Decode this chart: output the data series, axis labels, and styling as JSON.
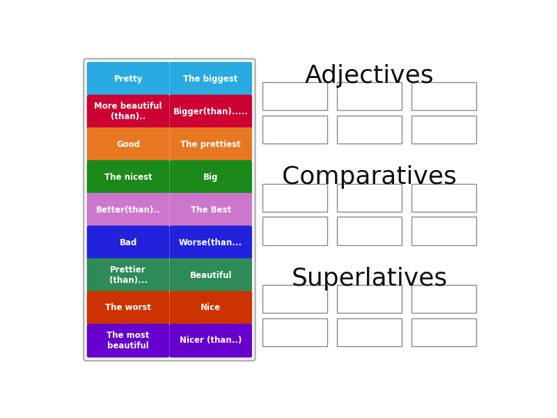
{
  "bg_color": "#ffffff",
  "cards": [
    {
      "text": "Pretty",
      "color": "#29ABE2",
      "row": 0,
      "col": 0
    },
    {
      "text": "The biggest",
      "color": "#29ABE2",
      "row": 0,
      "col": 1
    },
    {
      "text": "More beautiful\n(than)..",
      "color": "#CC0033",
      "row": 1,
      "col": 0
    },
    {
      "text": "Bigger(than).....",
      "color": "#CC0033",
      "row": 1,
      "col": 1
    },
    {
      "text": "Good",
      "color": "#E87722",
      "row": 2,
      "col": 0
    },
    {
      "text": "The prettiest",
      "color": "#E87722",
      "row": 2,
      "col": 1
    },
    {
      "text": "The nicest",
      "color": "#1B8A1B",
      "row": 3,
      "col": 0
    },
    {
      "text": "Big",
      "color": "#1B8A1B",
      "row": 3,
      "col": 1
    },
    {
      "text": "Better(than)..",
      "color": "#CC77CC",
      "row": 4,
      "col": 0
    },
    {
      "text": "The Best",
      "color": "#CC77CC",
      "row": 4,
      "col": 1
    },
    {
      "text": "Bad",
      "color": "#2222DD",
      "row": 5,
      "col": 0
    },
    {
      "text": "Worse(than...",
      "color": "#2222DD",
      "row": 5,
      "col": 1
    },
    {
      "text": "Prettier\n(than)...",
      "color": "#2E8B57",
      "row": 6,
      "col": 0
    },
    {
      "text": "Beautiful",
      "color": "#2E8B57",
      "row": 6,
      "col": 1
    },
    {
      "text": "The worst",
      "color": "#CC3300",
      "row": 7,
      "col": 0
    },
    {
      "text": "Nice",
      "color": "#CC3300",
      "row": 7,
      "col": 1
    },
    {
      "text": "The most\nbeautiful",
      "color": "#6600CC",
      "row": 8,
      "col": 0
    },
    {
      "text": "Nicer (than..)",
      "color": "#6600CC",
      "row": 8,
      "col": 1
    }
  ],
  "section_titles": [
    "Adjectives",
    "Comparatives",
    "Superlatives"
  ],
  "section_title_fontsize": 26,
  "card_text_fontsize": 8.5
}
